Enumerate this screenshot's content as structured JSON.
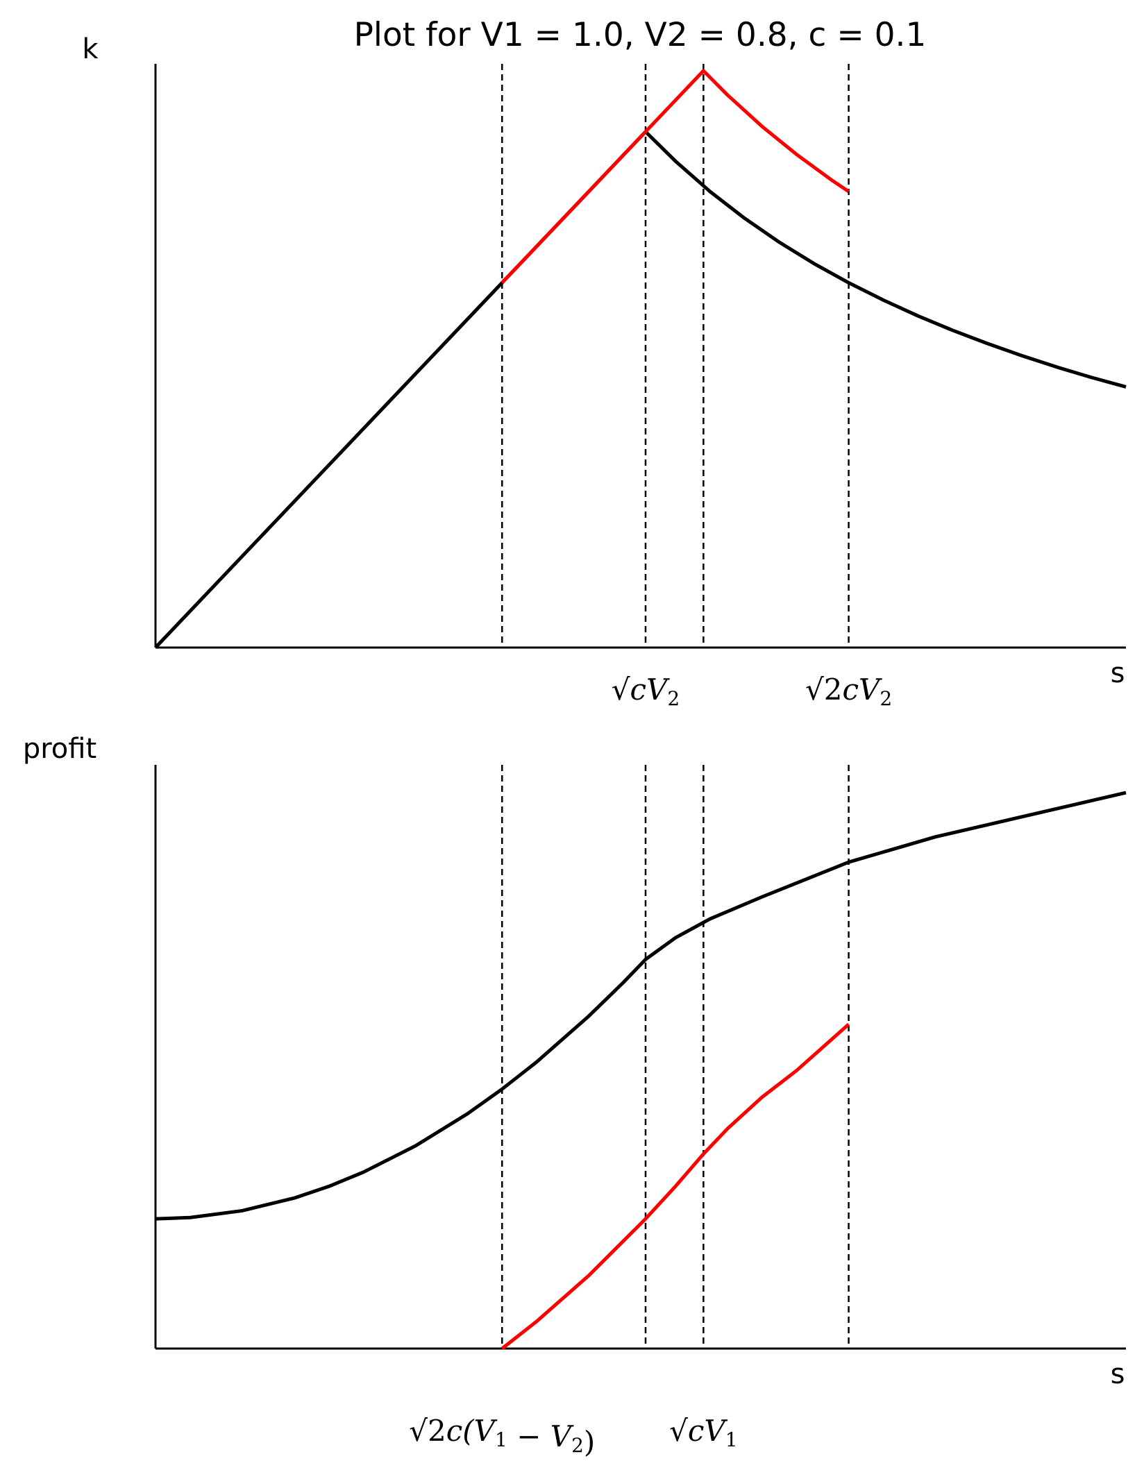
{
  "figure": {
    "title": "Plot for V1 = 1.0, V2 = 0.8, c = 0.1"
  },
  "chart_data": [
    {
      "type": "line",
      "title": "Plot for V1 = 1.0, V2 = 0.8, c = 0.1",
      "xlabel": "s",
      "ylabel": "k",
      "xlim": [
        0,
        0.56
      ],
      "ylim": [
        0,
        0.32
      ],
      "grid": false,
      "legend": "none",
      "reference_lines_x": [
        0.2,
        0.2828,
        0.3162,
        0.4
      ],
      "tick_labels": [
        {
          "x": 0.2828,
          "parts": [
            {
              "t": "√",
              "cls": "up"
            },
            {
              "t": "cV"
            },
            {
              "t": "2",
              "cls": "sub"
            }
          ]
        },
        {
          "x": 0.4,
          "parts": [
            {
              "t": "√",
              "cls": "up"
            },
            {
              "t": "2",
              "cls": "up"
            },
            {
              "t": "cV"
            },
            {
              "t": "2",
              "cls": "sub"
            }
          ]
        }
      ],
      "series": [
        {
          "color": "#000000",
          "x": [
            0,
            0.05,
            0.1,
            0.15,
            0.2,
            0.25,
            0.2828,
            0.3,
            0.32,
            0.34,
            0.36,
            0.38,
            0.4,
            0.42,
            0.44,
            0.46,
            0.48,
            0.5,
            0.52,
            0.54,
            0.56
          ],
          "y": [
            0,
            0.05,
            0.1,
            0.15,
            0.2,
            0.25,
            0.2828,
            0.2667,
            0.25,
            0.2353,
            0.2222,
            0.2105,
            0.2,
            0.1905,
            0.1818,
            0.1739,
            0.1667,
            0.16,
            0.1538,
            0.1481,
            0.1429
          ]
        },
        {
          "color": "#ff0000",
          "x": [
            0.2,
            0.25,
            0.3162,
            0.33,
            0.35,
            0.37,
            0.39,
            0.4
          ],
          "y": [
            0.2,
            0.25,
            0.3162,
            0.303,
            0.2857,
            0.2703,
            0.2564,
            0.25
          ]
        }
      ]
    },
    {
      "type": "line",
      "xlabel": "s",
      "ylabel": "profit",
      "xlim": [
        0,
        0.56
      ],
      "ylim": [
        0,
        0.9
      ],
      "grid": false,
      "legend": "none",
      "reference_lines_x": [
        0.2,
        0.2828,
        0.3162,
        0.4
      ],
      "tick_labels": [
        {
          "x": 0.2,
          "parts": [
            {
              "t": "√",
              "cls": "up"
            },
            {
              "t": "2",
              "cls": "up"
            },
            {
              "t": "c("
            },
            {
              "t": "V"
            },
            {
              "t": "1",
              "cls": "sub"
            },
            {
              "t": " − ",
              "cls": "up"
            },
            {
              "t": "V"
            },
            {
              "t": "2",
              "cls": "sub"
            },
            {
              "t": ")",
              "cls": "up"
            }
          ]
        },
        {
          "x": 0.3162,
          "parts": [
            {
              "t": "√",
              "cls": "up"
            },
            {
              "t": "cV"
            },
            {
              "t": "1",
              "cls": "sub"
            }
          ]
        }
      ],
      "series": [
        {
          "color": "#000000",
          "x": [
            0,
            0.02,
            0.05,
            0.08,
            0.1,
            0.12,
            0.15,
            0.18,
            0.2,
            0.22,
            0.25,
            0.27,
            0.2828,
            0.3,
            0.32,
            0.35,
            0.4,
            0.45,
            0.5,
            0.56
          ],
          "y": [
            0.2,
            0.202,
            0.2125,
            0.232,
            0.25,
            0.272,
            0.3125,
            0.362,
            0.4,
            0.442,
            0.5125,
            0.5645,
            0.6,
            0.6333,
            0.6625,
            0.6964,
            0.75,
            0.7889,
            0.82,
            0.8571
          ]
        },
        {
          "color": "#ff0000",
          "x": [
            0.2,
            0.22,
            0.25,
            0.2828,
            0.3,
            0.3162,
            0.33,
            0.35,
            0.37,
            0.4
          ],
          "y": [
            0,
            0.042,
            0.1125,
            0.2,
            0.25,
            0.3,
            0.3388,
            0.3875,
            0.4288,
            0.5
          ]
        }
      ]
    }
  ]
}
